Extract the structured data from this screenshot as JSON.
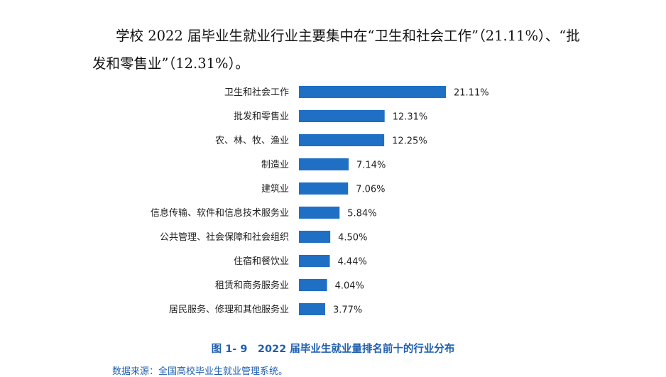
{
  "intro": {
    "line1": "学校 2022 届毕业生就业行业主要集中在“卫生和社会工作”（21.11%）、“批",
    "line2": "发和零售业”（12.31%）。"
  },
  "chart_data": {
    "type": "bar",
    "orientation": "horizontal",
    "categories": [
      "卫生和社会工作",
      "批发和零售业",
      "农、林、牧、渔业",
      "制造业",
      "建筑业",
      "信息传输、软件和信息技术服务业",
      "公共管理、社会保障和社会组织",
      "住宿和餐饮业",
      "租赁和商务服务业",
      "居民服务、修理和其他服务业"
    ],
    "values": [
      21.11,
      12.31,
      12.25,
      7.14,
      7.06,
      5.84,
      4.5,
      4.44,
      4.04,
      3.77
    ],
    "value_labels": [
      "21.11%",
      "12.31%",
      "12.25%",
      "7.14%",
      "7.06%",
      "5.84%",
      "4.50%",
      "4.44%",
      "4.04%",
      "3.77%"
    ],
    "xlim": [
      0,
      21.11
    ],
    "grid": false,
    "bar_color": "#1f6fc5"
  },
  "caption": "图 1- 9　2022 届毕业生就业量排名前十的行业分布",
  "source": "数据来源：全国高校毕业生就业管理系统。"
}
